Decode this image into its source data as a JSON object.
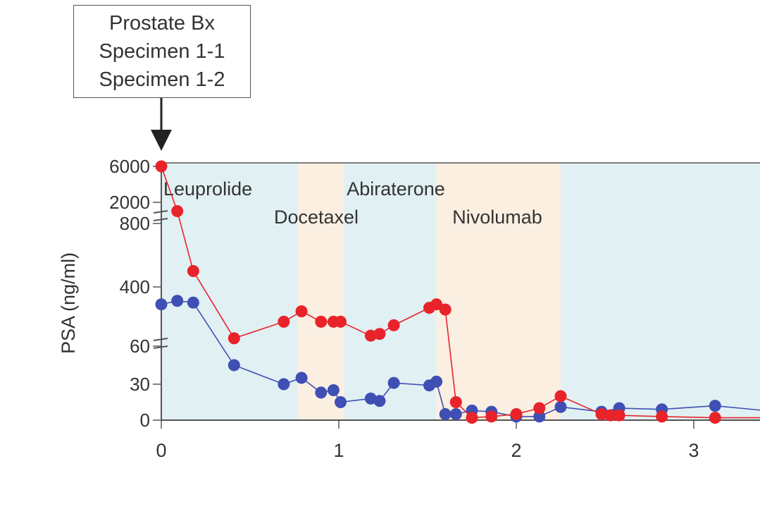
{
  "annotation": {
    "lines": [
      "Prostate Bx",
      "Specimen 1-1",
      "Specimen 1-2"
    ]
  },
  "colors": {
    "series_red": "#e8232a",
    "series_blue": "#3f4fb3",
    "band_blue": "#e1f0f3",
    "band_orange": "#fbefe2",
    "axis": "#555555"
  },
  "chart_data": {
    "type": "line",
    "ylabel": "PSA (ng/ml)",
    "xlabel": "",
    "xlim": [
      0,
      3.4
    ],
    "ylim": [
      0,
      6000
    ],
    "y_axis": "broken",
    "x_ticks": [
      0,
      1,
      2,
      3
    ],
    "x_tick_labels": [
      "0",
      "1",
      "2",
      "3"
    ],
    "y_ticks": [
      0,
      30,
      60,
      400,
      800,
      2000,
      6000
    ],
    "y_tick_labels": [
      "0",
      "30",
      "60",
      "400",
      "800",
      "2000",
      "6000"
    ],
    "treatments": [
      {
        "label": "Leuprolide",
        "start": 0,
        "end": 0.77,
        "color": "blue"
      },
      {
        "label": "Docetaxel",
        "start": 0.77,
        "end": 1.03,
        "color": "orange"
      },
      {
        "label": "Abiraterone",
        "start": 1.03,
        "end": 1.55,
        "color": "blue"
      },
      {
        "label": "Nivolumab",
        "start": 1.55,
        "end": 2.25,
        "color": "orange"
      },
      {
        "label": "",
        "start": 2.25,
        "end": 3.4,
        "color": "blue"
      }
    ],
    "series": [
      {
        "color": "red",
        "points": [
          [
            0,
            6000
          ],
          [
            0.09,
            1500
          ],
          [
            0.18,
            500
          ],
          [
            0.41,
            105
          ],
          [
            0.69,
            200
          ],
          [
            0.79,
            260
          ],
          [
            0.9,
            200
          ],
          [
            0.97,
            200
          ],
          [
            1.01,
            200
          ],
          [
            1.18,
            120
          ],
          [
            1.23,
            130
          ],
          [
            1.31,
            180
          ],
          [
            1.51,
            280
          ],
          [
            1.55,
            300
          ],
          [
            1.6,
            270
          ],
          [
            1.66,
            15
          ],
          [
            1.75,
            2
          ],
          [
            1.86,
            3
          ],
          [
            2.0,
            5
          ],
          [
            2.13,
            10
          ],
          [
            2.25,
            20
          ],
          [
            2.48,
            5
          ],
          [
            2.53,
            4
          ],
          [
            2.58,
            4
          ],
          [
            2.82,
            3
          ],
          [
            3.12,
            2
          ],
          [
            3.4,
            2
          ]
        ]
      },
      {
        "color": "blue",
        "points": [
          [
            0,
            300
          ],
          [
            0.09,
            320
          ],
          [
            0.18,
            310
          ],
          [
            0.41,
            45
          ],
          [
            0.69,
            30
          ],
          [
            0.79,
            35
          ],
          [
            0.9,
            23
          ],
          [
            0.97,
            25
          ],
          [
            1.01,
            15
          ],
          [
            1.18,
            18
          ],
          [
            1.23,
            16
          ],
          [
            1.31,
            31
          ],
          [
            1.51,
            29
          ],
          [
            1.55,
            32
          ],
          [
            1.6,
            5
          ],
          [
            1.66,
            5
          ],
          [
            1.75,
            8
          ],
          [
            1.86,
            7
          ],
          [
            2.0,
            3
          ],
          [
            2.13,
            3
          ],
          [
            2.25,
            11
          ],
          [
            2.48,
            7
          ],
          [
            2.58,
            10
          ],
          [
            2.82,
            9
          ],
          [
            3.12,
            12
          ],
          [
            3.4,
            8
          ]
        ]
      }
    ]
  }
}
